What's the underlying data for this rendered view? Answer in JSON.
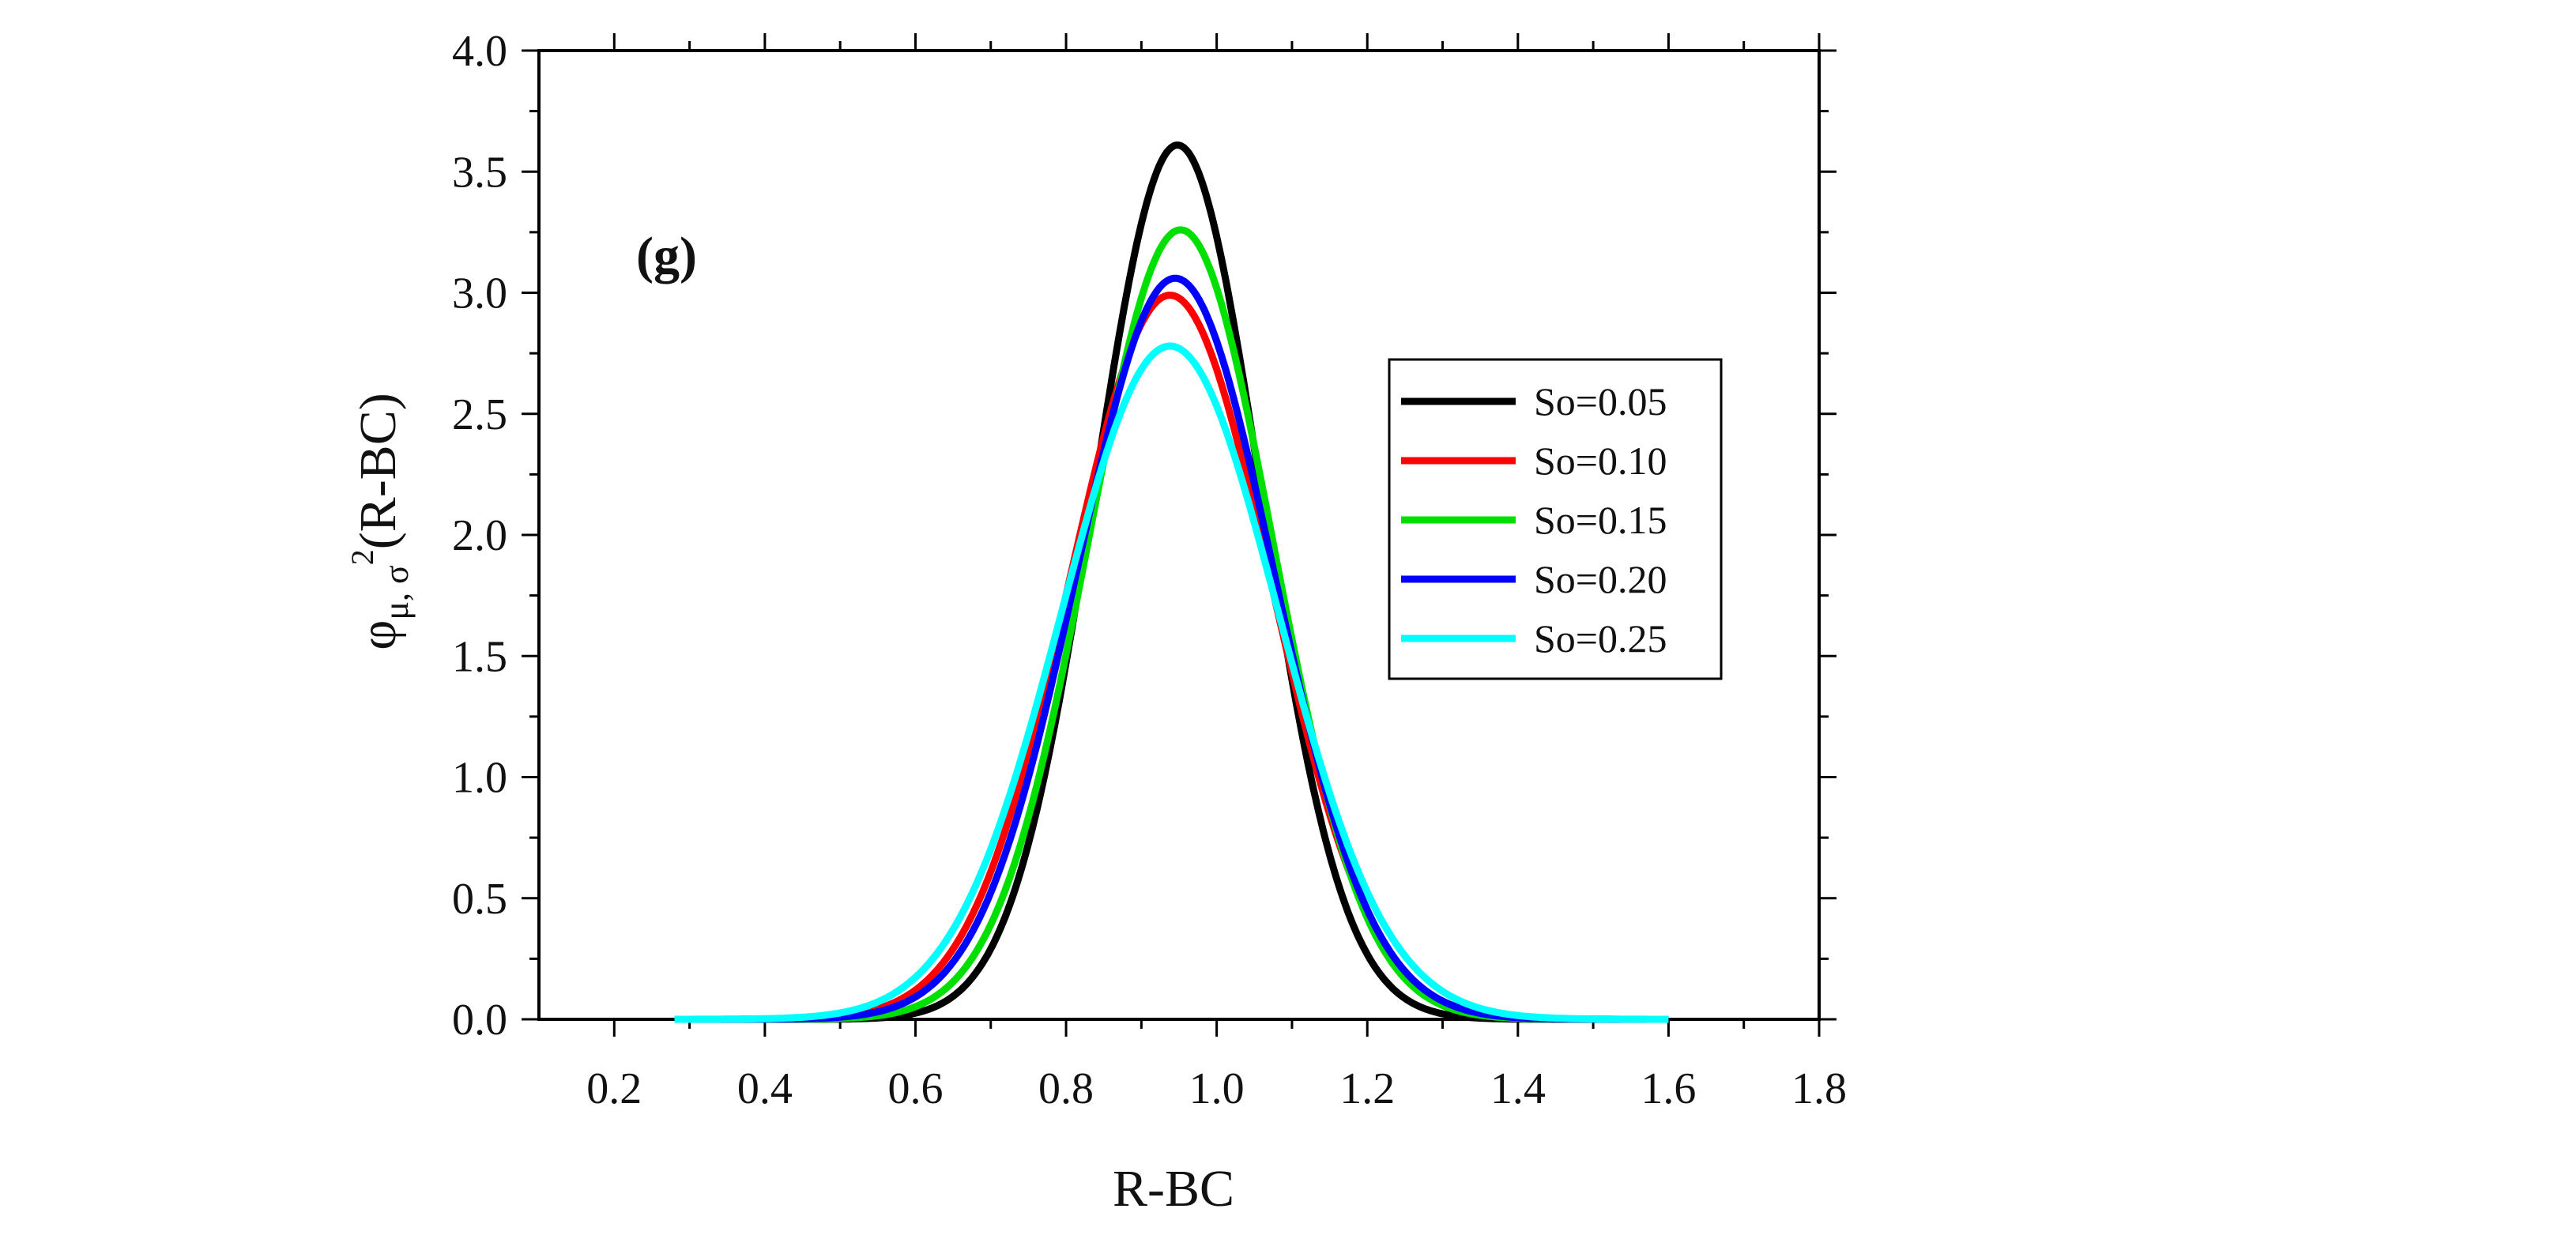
{
  "chart_data": {
    "type": "line",
    "panel_label": "(g)",
    "xlabel": "R-BC",
    "ylabel": "φμ, σ²(R-BC)",
    "ylabel_parts": {
      "main": "φ",
      "sub": "μ, σ",
      "sup": "2",
      "tail": "(R-BC)"
    },
    "xlim": [
      0.1,
      1.8
    ],
    "ylim": [
      0.0,
      4.0
    ],
    "xticks": [
      0.2,
      0.4,
      0.6,
      0.8,
      1.0,
      1.2,
      1.4,
      1.6,
      1.8
    ],
    "yticks": [
      0.0,
      0.5,
      1.0,
      1.5,
      2.0,
      2.5,
      3.0,
      3.5,
      4.0
    ],
    "xtick_labels": [
      "0.2",
      "0.4",
      "0.6",
      "0.8",
      "1.0",
      "1.2",
      "1.4",
      "1.6",
      "1.8"
    ],
    "ytick_labels": [
      "0.0",
      "0.5",
      "1.0",
      "1.5",
      "2.0",
      "2.5",
      "3.0",
      "3.5",
      "4.0"
    ],
    "x_range": [
      0.28,
      1.6
    ],
    "legend_position": "right-middle",
    "series": [
      {
        "name": "So=0.05",
        "color": "#000000",
        "distribution": "normal",
        "mean": 0.948,
        "peak": 3.61
      },
      {
        "name": "So=0.10",
        "color": "#ff0000",
        "distribution": "normal",
        "mean": 0.938,
        "peak": 2.99
      },
      {
        "name": "So=0.15",
        "color": "#00e000",
        "distribution": "normal",
        "mean": 0.952,
        "peak": 3.26
      },
      {
        "name": "So=0.20",
        "color": "#0000ff",
        "distribution": "normal",
        "mean": 0.945,
        "peak": 3.06
      },
      {
        "name": "So=0.25",
        "color": "#00ffff",
        "distribution": "normal",
        "mean": 0.938,
        "peak": 2.78
      }
    ]
  }
}
